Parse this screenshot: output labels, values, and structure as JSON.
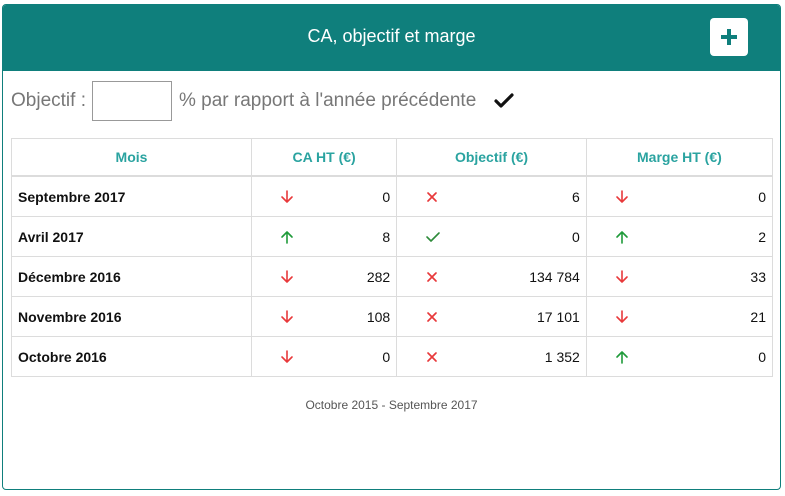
{
  "header": {
    "title": "CA, objectif et marge",
    "add_label": "+"
  },
  "objective": {
    "label": "Objectif :",
    "input_value": "",
    "suffix": "% par rapport à l'année précédente"
  },
  "table": {
    "columns": [
      "Mois",
      "CA HT (€)",
      "Objectif (€)",
      "Marge HT (€)"
    ],
    "rows": [
      {
        "month": "Septembre 2017",
        "ca": "0",
        "ca_trend": "down",
        "objectif": "6",
        "objectif_status": "miss",
        "marge": "0",
        "marge_trend": "down"
      },
      {
        "month": "Avril 2017",
        "ca": "8",
        "ca_trend": "up",
        "objectif": "0",
        "objectif_status": "met",
        "marge": "2",
        "marge_trend": "up"
      },
      {
        "month": "Décembre 2016",
        "ca": "282",
        "ca_trend": "down",
        "objectif": "134 784",
        "objectif_status": "miss",
        "marge": "33",
        "marge_trend": "down"
      },
      {
        "month": "Novembre 2016",
        "ca": "108",
        "ca_trend": "down",
        "objectif": "17 101",
        "objectif_status": "miss",
        "marge": "21",
        "marge_trend": "down"
      },
      {
        "month": "Octobre 2016",
        "ca": "0",
        "ca_trend": "down",
        "objectif": "1 352",
        "objectif_status": "miss",
        "marge": "0",
        "marge_trend": "up"
      }
    ]
  },
  "period": "Octobre 2015 - Septembre 2017",
  "colors": {
    "brand": "#0f7f7c",
    "header_text": "#2aa3a0",
    "down": "#e8393b",
    "up": "#1f9b3a",
    "miss": "#e8393b",
    "met": "#2e8b3a"
  }
}
